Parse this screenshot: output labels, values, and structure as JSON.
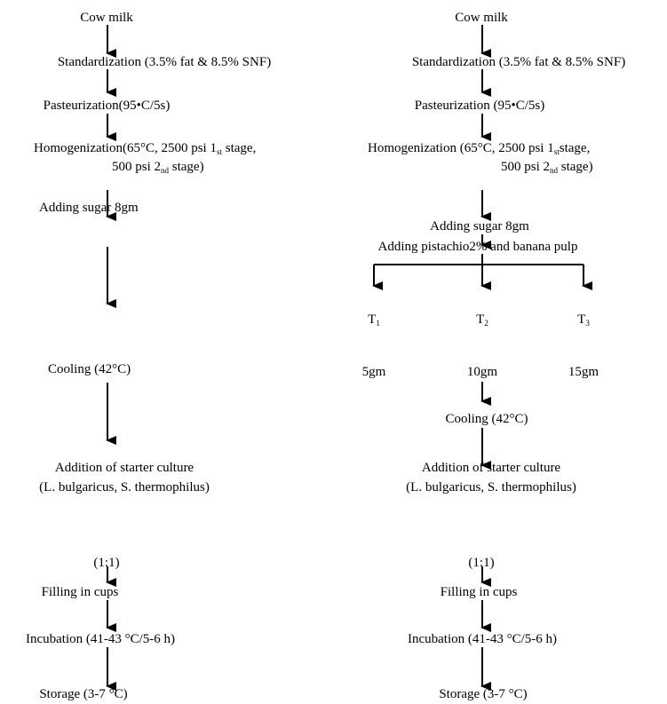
{
  "left": {
    "cow_milk": "Cow milk",
    "standardization": "Standardization (3.5% fat & 8.5% SNF)",
    "pasteurization": "Pasteurization(95•C/5s)",
    "homog_line1_pre": "Homogenization(65°C, 2500 psi 1",
    "homog_sub1": "st",
    "homog_line1_post": " stage,",
    "homog_line2_pre": "500 psi 2",
    "homog_sub2": "nd",
    "homog_line2_post": " stage)",
    "adding_sugar": "Adding sugar 8gm",
    "cooling": "Cooling (42°C)",
    "starter_1": "Addition of starter culture",
    "starter_2": "(L. bulgaricus, S. thermophilus)",
    "ratio": "(1:1)",
    "filling": "Filling in cups",
    "incubation": "Incubation (41-43 °C/5-6 h)",
    "storage": "Storage (3-7 °C)"
  },
  "right": {
    "cow_milk": "Cow milk",
    "standardization": "Standardization (3.5% fat & 8.5% SNF)",
    "pasteurization": "Pasteurization (95•C/5s)",
    "homog_line1_pre": "Homogenization (65°C, 2500 psi 1",
    "homog_sub1": "st",
    "homog_line1_post": "stage,",
    "homog_line2_pre": "500 psi 2",
    "homog_sub2": "nd",
    "homog_line2_post": " stage)",
    "adding_sugar": "Adding sugar 8gm",
    "adding_pistachio": "Adding pistachio2% and banana pulp",
    "treatments": [
      {
        "label": "T",
        "sub": "1",
        "amount": "5gm"
      },
      {
        "label": "T",
        "sub": "2",
        "amount": "10gm"
      },
      {
        "label": "T",
        "sub": "3",
        "amount": "15gm"
      }
    ],
    "cooling": "Cooling (42°C)",
    "starter_1": "Addition of starter culture",
    "starter_2": "(L. bulgaricus, S. thermophilus)",
    "ratio": "(1:1)",
    "filling": "Filling in cups",
    "incubation": "Incubation (41-43 °C/5-6 h)",
    "storage": "Storage (3-7 °C)"
  }
}
